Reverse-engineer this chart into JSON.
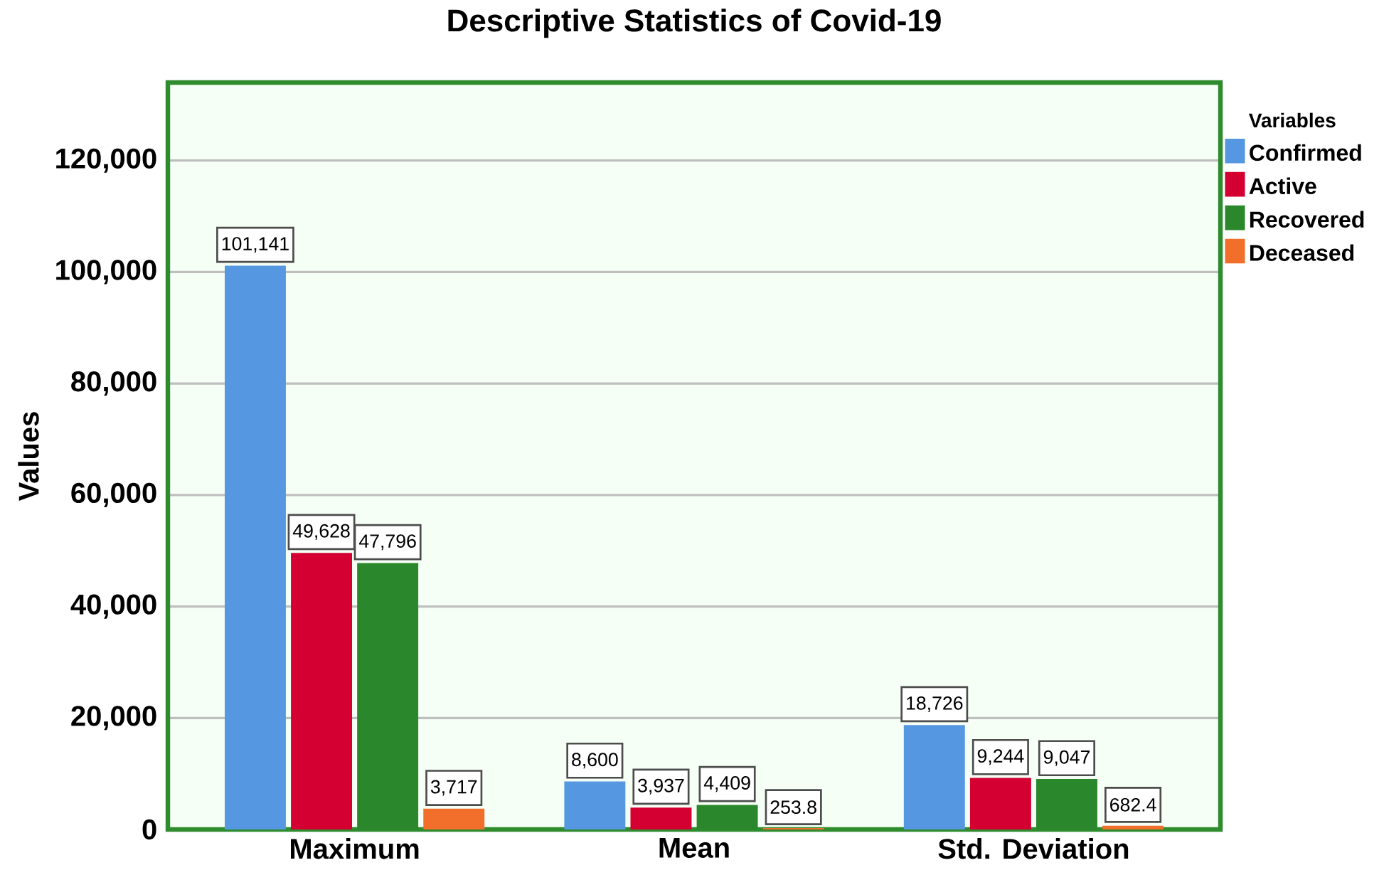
{
  "chart_data": {
    "type": "bar",
    "title": "Descriptive Statistics of Covid-19",
    "ylabel": "Values",
    "legend_title": "Variables",
    "categories": [
      "Maximum",
      "Mean",
      "Std. Deviation"
    ],
    "series": [
      {
        "name": "Confirmed",
        "color": "#5597e1",
        "values": [
          101141,
          8600,
          18726
        ],
        "value_labels": [
          "101,141",
          "8,600",
          "18,726"
        ]
      },
      {
        "name": "Active",
        "color": "#d50032",
        "values": [
          49628,
          3937,
          9244
        ],
        "value_labels": [
          "49,628",
          "3,937",
          "9,244"
        ]
      },
      {
        "name": "Recovered",
        "color": "#2b872b",
        "values": [
          47796,
          4409,
          9047
        ],
        "value_labels": [
          "47,796",
          "4,409",
          "9,047"
        ]
      },
      {
        "name": "Deceased",
        "color": "#f26e2b",
        "values": [
          3717,
          253.8,
          682.4
        ],
        "value_labels": [
          "3,717",
          "253.8",
          "682.4"
        ]
      }
    ],
    "ylim": [
      0,
      134000
    ],
    "yticks": [
      0,
      {
        "value": 20000,
        "label": "20,000"
      },
      {
        "value": 40000,
        "label": "40,000"
      },
      {
        "value": 60000,
        "label": "60,000"
      },
      {
        "value": 80000,
        "label": "80,000"
      },
      {
        "value": 100000,
        "label": "100,000"
      },
      {
        "value": 120000,
        "label": "120,000"
      }
    ],
    "grid": "y",
    "legend": "top right"
  }
}
